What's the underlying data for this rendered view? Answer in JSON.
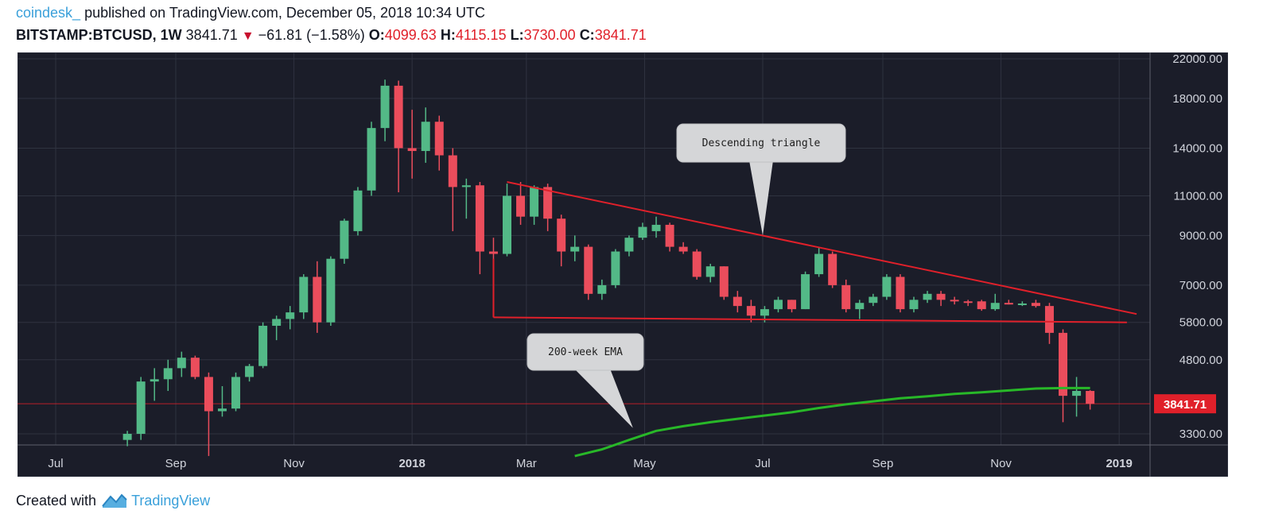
{
  "header": {
    "author": "coindesk_",
    "published_text": "published on TradingView.com, December 05, 2018 10:34 UTC",
    "symbol": "BITSTAMP:BTCUSD, 1W",
    "last": "3841.71",
    "change": "−61.81 (−1.58%)",
    "o_label": "O:",
    "o_value": "4099.63",
    "h_label": "H:",
    "h_value": "4115.15",
    "l_label": "L:",
    "l_value": "3730.00",
    "c_label": "C:",
    "c_value": "3841.71"
  },
  "footer": {
    "created_with": "Created with",
    "brand": "TradingView"
  },
  "colors": {
    "background": "#1b1d29",
    "grid": "#2f3340",
    "up": "#53b987",
    "down": "#eb4d5c",
    "trendline": "#e0202a",
    "ema": "#28b828",
    "axis_text": "#d1d4dc",
    "price_tag": "#e0202a"
  },
  "chart_data": {
    "type": "candlestick",
    "x_ticks": [
      {
        "label": "Jul",
        "date": "2017-07-01"
      },
      {
        "label": "Sep",
        "date": "2017-09-01"
      },
      {
        "label": "Nov",
        "date": "2017-11-01"
      },
      {
        "label": "2018",
        "date": "2018-01-01",
        "bold": true
      },
      {
        "label": "Mar",
        "date": "2018-03-01"
      },
      {
        "label": "May",
        "date": "2018-05-01"
      },
      {
        "label": "Jul",
        "date": "2018-07-01"
      },
      {
        "label": "Sep",
        "date": "2018-09-01"
      },
      {
        "label": "Nov",
        "date": "2018-11-01"
      },
      {
        "label": "2019",
        "date": "2019-01-01",
        "bold": true
      }
    ],
    "y_scale": "log",
    "y_range": [
      2950,
      23000
    ],
    "y_ticks": [
      "22000.00",
      "18000.00",
      "14000.00",
      "11000.00",
      "9000.00",
      "7000.00",
      "5800.00",
      "4800.00",
      "3300.00"
    ],
    "last_price_label": "3841.71",
    "last_price": 3841.71,
    "candles": [
      {
        "date": "2017-08-07",
        "o": 3200,
        "h": 3350,
        "l": 3100,
        "c": 3300
      },
      {
        "date": "2017-08-14",
        "o": 3300,
        "h": 4400,
        "l": 3200,
        "c": 4300
      },
      {
        "date": "2017-08-21",
        "o": 4300,
        "h": 4600,
        "l": 3900,
        "c": 4350
      },
      {
        "date": "2017-08-28",
        "o": 4350,
        "h": 4800,
        "l": 4100,
        "c": 4600
      },
      {
        "date": "2017-09-04",
        "o": 4600,
        "h": 5000,
        "l": 4400,
        "c": 4850
      },
      {
        "date": "2017-09-11",
        "o": 4850,
        "h": 4900,
        "l": 4350,
        "c": 4400
      },
      {
        "date": "2017-09-18",
        "o": 4400,
        "h": 4500,
        "l": 2950,
        "c": 3700
      },
      {
        "date": "2017-09-25",
        "o": 3700,
        "h": 4200,
        "l": 3600,
        "c": 3750
      },
      {
        "date": "2017-10-02",
        "o": 3750,
        "h": 4500,
        "l": 3700,
        "c": 4400
      },
      {
        "date": "2017-10-09",
        "o": 4400,
        "h": 4700,
        "l": 4300,
        "c": 4650
      },
      {
        "date": "2017-10-16",
        "o": 4650,
        "h": 5800,
        "l": 4600,
        "c": 5700
      },
      {
        "date": "2017-10-23",
        "o": 5700,
        "h": 6000,
        "l": 5300,
        "c": 5900
      },
      {
        "date": "2017-10-30",
        "o": 5900,
        "h": 6300,
        "l": 5600,
        "c": 6100
      },
      {
        "date": "2017-11-06",
        "o": 6100,
        "h": 7400,
        "l": 5900,
        "c": 7300
      },
      {
        "date": "2017-11-13",
        "o": 7300,
        "h": 7900,
        "l": 5500,
        "c": 5800
      },
      {
        "date": "2017-11-20",
        "o": 5800,
        "h": 8100,
        "l": 5700,
        "c": 8000
      },
      {
        "date": "2017-11-27",
        "o": 8000,
        "h": 9800,
        "l": 7800,
        "c": 9700
      },
      {
        "date": "2017-12-04",
        "o": 9200,
        "h": 11500,
        "l": 9000,
        "c": 11300
      },
      {
        "date": "2017-12-11",
        "o": 11300,
        "h": 16000,
        "l": 11000,
        "c": 15500
      },
      {
        "date": "2017-12-18",
        "o": 15500,
        "h": 19800,
        "l": 14500,
        "c": 19200
      },
      {
        "date": "2017-12-25",
        "o": 19200,
        "h": 19700,
        "l": 11200,
        "c": 14000
      },
      {
        "date": "2018-01-01",
        "o": 14000,
        "h": 17000,
        "l": 12000,
        "c": 13800
      },
      {
        "date": "2018-01-08",
        "o": 13800,
        "h": 17200,
        "l": 13000,
        "c": 16000
      },
      {
        "date": "2018-01-15",
        "o": 16000,
        "h": 16500,
        "l": 12500,
        "c": 13500
      },
      {
        "date": "2018-01-22",
        "o": 13500,
        "h": 14000,
        "l": 9200,
        "c": 11500
      },
      {
        "date": "2018-01-29",
        "o": 11500,
        "h": 12000,
        "l": 9800,
        "c": 11600
      },
      {
        "date": "2018-02-05",
        "o": 11600,
        "h": 11800,
        "l": 7400,
        "c": 8300
      },
      {
        "date": "2018-02-12",
        "o": 8300,
        "h": 8900,
        "l": 5950,
        "c": 8200
      },
      {
        "date": "2018-02-19",
        "o": 8200,
        "h": 11700,
        "l": 8100,
        "c": 11000
      },
      {
        "date": "2018-02-26",
        "o": 11000,
        "h": 11800,
        "l": 9500,
        "c": 9900
      },
      {
        "date": "2018-03-05",
        "o": 9900,
        "h": 11600,
        "l": 9500,
        "c": 11500
      },
      {
        "date": "2018-03-12",
        "o": 11500,
        "h": 11700,
        "l": 9200,
        "c": 9800
      },
      {
        "date": "2018-03-19",
        "o": 9800,
        "h": 10000,
        "l": 7700,
        "c": 8300
      },
      {
        "date": "2018-03-26",
        "o": 8300,
        "h": 9000,
        "l": 7900,
        "c": 8500
      },
      {
        "date": "2018-04-02",
        "o": 8500,
        "h": 8600,
        "l": 6500,
        "c": 6700
      },
      {
        "date": "2018-04-09",
        "o": 6700,
        "h": 7200,
        "l": 6500,
        "c": 7000
      },
      {
        "date": "2018-04-16",
        "o": 7000,
        "h": 8400,
        "l": 6900,
        "c": 8300
      },
      {
        "date": "2018-04-23",
        "o": 8300,
        "h": 9000,
        "l": 8100,
        "c": 8900
      },
      {
        "date": "2018-04-30",
        "o": 8900,
        "h": 9600,
        "l": 8800,
        "c": 9400
      },
      {
        "date": "2018-05-07",
        "o": 9200,
        "h": 9900,
        "l": 8900,
        "c": 9500
      },
      {
        "date": "2018-05-14",
        "o": 9500,
        "h": 9600,
        "l": 8300,
        "c": 8500
      },
      {
        "date": "2018-05-21",
        "o": 8500,
        "h": 8700,
        "l": 8200,
        "c": 8300
      },
      {
        "date": "2018-05-28",
        "o": 8300,
        "h": 8400,
        "l": 7200,
        "c": 7300
      },
      {
        "date": "2018-06-04",
        "o": 7300,
        "h": 7800,
        "l": 7100,
        "c": 7700
      },
      {
        "date": "2018-06-11",
        "o": 7700,
        "h": 7700,
        "l": 6500,
        "c": 6600
      },
      {
        "date": "2018-06-18",
        "o": 6600,
        "h": 6800,
        "l": 6100,
        "c": 6300
      },
      {
        "date": "2018-06-25",
        "o": 6300,
        "h": 6500,
        "l": 5800,
        "c": 6000
      },
      {
        "date": "2018-07-02",
        "o": 6000,
        "h": 6300,
        "l": 5800,
        "c": 6200
      },
      {
        "date": "2018-07-09",
        "o": 6200,
        "h": 6600,
        "l": 6100,
        "c": 6500
      },
      {
        "date": "2018-07-16",
        "o": 6500,
        "h": 6500,
        "l": 6100,
        "c": 6200
      },
      {
        "date": "2018-07-23",
        "o": 6200,
        "h": 7500,
        "l": 6200,
        "c": 7400
      },
      {
        "date": "2018-07-30",
        "o": 7400,
        "h": 8500,
        "l": 7300,
        "c": 8200
      },
      {
        "date": "2018-08-06",
        "o": 8200,
        "h": 8300,
        "l": 6900,
        "c": 7000
      },
      {
        "date": "2018-08-13",
        "o": 7000,
        "h": 7200,
        "l": 6100,
        "c": 6200
      },
      {
        "date": "2018-08-20",
        "o": 6200,
        "h": 6500,
        "l": 5900,
        "c": 6400
      },
      {
        "date": "2018-08-27",
        "o": 6400,
        "h": 6700,
        "l": 6300,
        "c": 6600
      },
      {
        "date": "2018-09-03",
        "o": 6600,
        "h": 7400,
        "l": 6500,
        "c": 7300
      },
      {
        "date": "2018-09-10",
        "o": 7300,
        "h": 7400,
        "l": 6100,
        "c": 6200
      },
      {
        "date": "2018-09-17",
        "o": 6200,
        "h": 6600,
        "l": 6100,
        "c": 6500
      },
      {
        "date": "2018-09-24",
        "o": 6500,
        "h": 6800,
        "l": 6400,
        "c": 6700
      },
      {
        "date": "2018-10-01",
        "o": 6700,
        "h": 6800,
        "l": 6300,
        "c": 6500
      },
      {
        "date": "2018-10-08",
        "o": 6500,
        "h": 6600,
        "l": 6350,
        "c": 6450
      },
      {
        "date": "2018-10-15",
        "o": 6450,
        "h": 6500,
        "l": 6300,
        "c": 6400
      },
      {
        "date": "2018-10-22",
        "o": 6450,
        "h": 6500,
        "l": 6150,
        "c": 6200
      },
      {
        "date": "2018-10-29",
        "o": 6200,
        "h": 6700,
        "l": 6150,
        "c": 6400
      },
      {
        "date": "2018-11-05",
        "o": 6400,
        "h": 6500,
        "l": 6350,
        "c": 6370
      },
      {
        "date": "2018-11-12",
        "o": 6370,
        "h": 6450,
        "l": 6300,
        "c": 6380
      },
      {
        "date": "2018-11-19",
        "o": 6400,
        "h": 6500,
        "l": 6250,
        "c": 6300
      },
      {
        "date": "2018-11-26",
        "o": 6300,
        "h": 6400,
        "l": 5200,
        "c": 5500
      },
      {
        "date": "2018-12-03",
        "o": 5500,
        "h": 5600,
        "l": 3500,
        "c": 4000
      },
      {
        "date": "2018-12-10",
        "o": 4000,
        "h": 4400,
        "l": 3600,
        "c": 4100
      },
      {
        "date": "2018-12-17",
        "o": 4099.63,
        "h": 4115.15,
        "l": 3730.0,
        "c": 3841.71
      }
    ],
    "ema_200w": {
      "label": "200-week EMA",
      "points": [
        {
          "date": "2018-03-26",
          "v": 2950
        },
        {
          "date": "2018-04-09",
          "v": 3050
        },
        {
          "date": "2018-04-23",
          "v": 3200
        },
        {
          "date": "2018-05-07",
          "v": 3350
        },
        {
          "date": "2018-05-21",
          "v": 3430
        },
        {
          "date": "2018-06-04",
          "v": 3500
        },
        {
          "date": "2018-06-18",
          "v": 3560
        },
        {
          "date": "2018-07-02",
          "v": 3620
        },
        {
          "date": "2018-07-16",
          "v": 3680
        },
        {
          "date": "2018-07-30",
          "v": 3760
        },
        {
          "date": "2018-08-13",
          "v": 3830
        },
        {
          "date": "2018-08-27",
          "v": 3890
        },
        {
          "date": "2018-09-10",
          "v": 3950
        },
        {
          "date": "2018-09-24",
          "v": 3990
        },
        {
          "date": "2018-10-08",
          "v": 4040
        },
        {
          "date": "2018-10-22",
          "v": 4070
        },
        {
          "date": "2018-11-05",
          "v": 4110
        },
        {
          "date": "2018-11-19",
          "v": 4150
        },
        {
          "date": "2018-12-03",
          "v": 4160
        },
        {
          "date": "2018-12-17",
          "v": 4160
        }
      ]
    },
    "trendlines": [
      {
        "name": "upper",
        "from": {
          "date": "2018-02-19",
          "v": 11800
        },
        "to": {
          "date": "2019-01-10",
          "v": 6050
        }
      },
      {
        "name": "lower",
        "from": {
          "date": "2018-02-12",
          "v": 5950
        },
        "to": {
          "date": "2019-01-05",
          "v": 5800
        }
      },
      {
        "name": "lower-drop",
        "from": {
          "date": "2018-02-12",
          "v": 8000
        },
        "to": {
          "date": "2018-02-12",
          "v": 5950
        }
      }
    ],
    "annotations": [
      {
        "text": "Descending triangle",
        "pointer": {
          "date": "2018-07-01",
          "v": 9000
        }
      },
      {
        "text": "200-week EMA",
        "pointer": {
          "date": "2018-04-25",
          "v": 3400
        }
      }
    ]
  }
}
